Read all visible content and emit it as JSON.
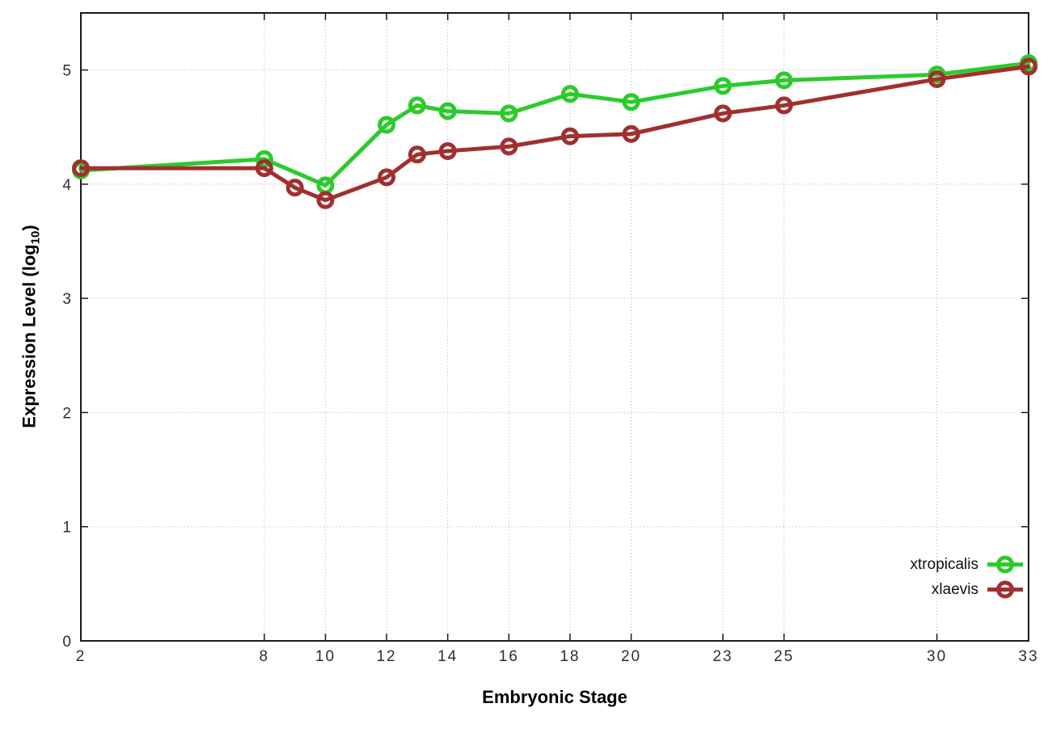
{
  "chart_data": {
    "type": "line",
    "title": "",
    "xlabel": "Embryonic Stage",
    "ylabel_prefix": "Expression Level (log",
    "ylabel_sub": "10",
    "ylabel_suffix": ")",
    "xlim": [
      2,
      33
    ],
    "ylim": [
      0,
      5.5
    ],
    "x_ticks": [
      2,
      8,
      10,
      12,
      14,
      16,
      18,
      20,
      23,
      25,
      30,
      33
    ],
    "y_ticks": [
      0,
      1,
      2,
      3,
      4,
      5
    ],
    "grid": true,
    "grid_color": "#b8b8b8",
    "border_color": "#1a1a1a",
    "tick_label_color": "#2e2e2e",
    "legend_position": "bottom-right",
    "series": [
      {
        "name": "xtropicalis",
        "color": "#2bcb2b",
        "points": [
          [
            2,
            4.12
          ],
          [
            8,
            4.22
          ],
          [
            10,
            3.99
          ],
          [
            12,
            4.52
          ],
          [
            13,
            4.69
          ],
          [
            14,
            4.64
          ],
          [
            16,
            4.62
          ],
          [
            18,
            4.79
          ],
          [
            20,
            4.72
          ],
          [
            23,
            4.86
          ],
          [
            25,
            4.91
          ],
          [
            30,
            4.96
          ],
          [
            33,
            5.06
          ]
        ]
      },
      {
        "name": "xlaevis",
        "color": "#a03030",
        "points": [
          [
            2,
            4.14
          ],
          [
            8,
            4.14
          ],
          [
            9,
            3.97
          ],
          [
            10,
            3.86
          ],
          [
            12,
            4.06
          ],
          [
            13,
            4.26
          ],
          [
            14,
            4.29
          ],
          [
            16,
            4.33
          ],
          [
            18,
            4.42
          ],
          [
            20,
            4.44
          ],
          [
            23,
            4.62
          ],
          [
            25,
            4.69
          ],
          [
            30,
            4.92
          ],
          [
            33,
            5.03
          ]
        ]
      }
    ]
  }
}
